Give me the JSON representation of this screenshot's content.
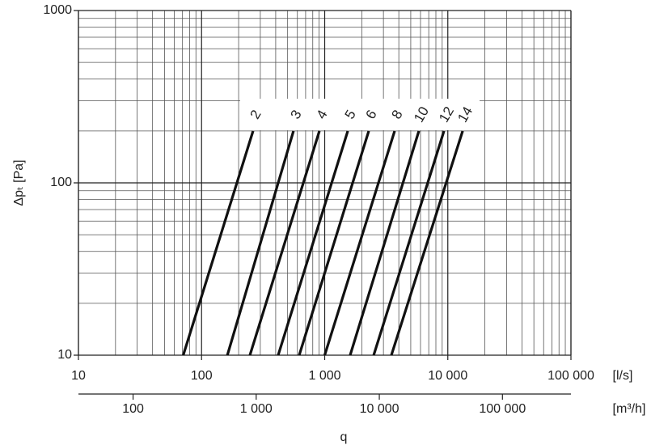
{
  "chart_data": {
    "type": "line",
    "xscale": "log",
    "yscale": "log",
    "ylabel": "Δpₜ [Pa]",
    "xunit": "[l/s]",
    "x2unit": "[m³/h]",
    "xlabel": "q",
    "xlim": [
      10,
      100000
    ],
    "ylim": [
      10,
      1000
    ],
    "xticks": [
      10,
      100,
      {
        "value": 1000,
        "label": "1 000"
      },
      {
        "value": 10000,
        "label": "10 000"
      },
      {
        "value": 100000,
        "label": "100 000"
      }
    ],
    "yticks": [
      10,
      100,
      1000
    ],
    "xminor": [
      20,
      30,
      40,
      50,
      60,
      70,
      80,
      90,
      200,
      300,
      400,
      500,
      600,
      700,
      800,
      900,
      2000,
      3000,
      4000,
      5000,
      6000,
      7000,
      8000,
      9000,
      20000,
      30000,
      40000,
      50000,
      60000,
      70000,
      80000,
      90000
    ],
    "yminor": [
      20,
      30,
      40,
      50,
      60,
      70,
      80,
      90,
      200,
      300,
      400,
      500,
      600,
      700,
      800,
      900
    ],
    "x2lim": [
      36,
      360000
    ],
    "x2ticks": [
      100,
      {
        "value": 1000,
        "label": "1 000"
      },
      {
        "value": 10000,
        "label": "10 000"
      },
      {
        "value": 100000,
        "label": "100 000"
      }
    ],
    "grid": true,
    "series": [
      {
        "name": "2",
        "color": "#111111",
        "x": [
          71,
          262
        ],
        "values": [
          10,
          200
        ]
      },
      {
        "name": "3",
        "color": "#111111",
        "x": [
          162,
          558
        ],
        "values": [
          10,
          200
        ]
      },
      {
        "name": "4",
        "color": "#111111",
        "x": [
          247,
          906
        ],
        "values": [
          10,
          200
        ]
      },
      {
        "name": "5",
        "color": "#111111",
        "x": [
          419,
          1540
        ],
        "values": [
          10,
          200
        ]
      },
      {
        "name": "6",
        "color": "#111111",
        "x": [
          621,
          2280
        ],
        "values": [
          10,
          200
        ]
      },
      {
        "name": "8",
        "color": "#111111",
        "x": [
          1000,
          3700
        ],
        "values": [
          10,
          200
        ]
      },
      {
        "name": "10",
        "color": "#111111",
        "x": [
          1610,
          5820
        ],
        "values": [
          10,
          200
        ]
      },
      {
        "name": "12",
        "color": "#111111",
        "x": [
          2500,
          9310
        ],
        "values": [
          10,
          200
        ]
      },
      {
        "name": "14",
        "color": "#111111",
        "x": [
          3480,
          13200
        ],
        "values": [
          10,
          200
        ]
      }
    ]
  }
}
